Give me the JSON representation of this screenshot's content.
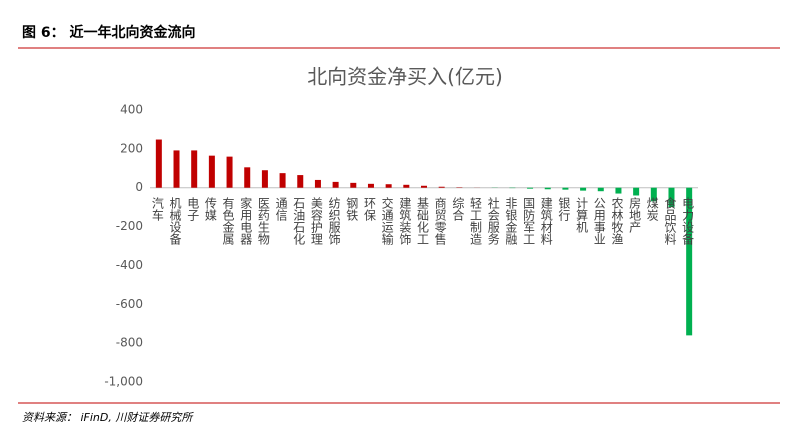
{
  "header": "图 6： 近一年北向资金流向",
  "source": "资料来源： iFinD, 川财证券研究所",
  "chart_data": {
    "type": "bar",
    "title": "北向资金净买入(亿元)",
    "categories": [
      "汽车",
      "机械设备",
      "电子",
      "传媒",
      "有色金属",
      "家用电器",
      "医药生物",
      "通信",
      "石油石化",
      "美容护理",
      "纺织服饰",
      "钢铁",
      "环保",
      "交通运输",
      "建筑装饰",
      "基础化工",
      "商贸零售",
      "综合",
      "轻工制造",
      "社会服务",
      "非银金融",
      "国防军工",
      "建筑材料",
      "银行",
      "计算机",
      "公用事业",
      "农林牧渔",
      "房地产",
      "煤炭",
      "食品饮料",
      "电力设备"
    ],
    "values": [
      248,
      192,
      192,
      165,
      160,
      105,
      90,
      75,
      65,
      40,
      30,
      25,
      20,
      18,
      15,
      10,
      5,
      2,
      0.5,
      -1,
      -2,
      -5,
      -8,
      -10,
      -15,
      -18,
      -30,
      -40,
      -70,
      -100,
      -760
    ],
    "positive_color": "#c00000",
    "negative_color": "#00b050",
    "ylim": [
      -1000,
      400
    ],
    "yticks": [
      {
        "value": -1000,
        "label": "-1,000"
      },
      -800,
      -600,
      -400,
      -200,
      0,
      200,
      400
    ],
    "grid": false
  }
}
